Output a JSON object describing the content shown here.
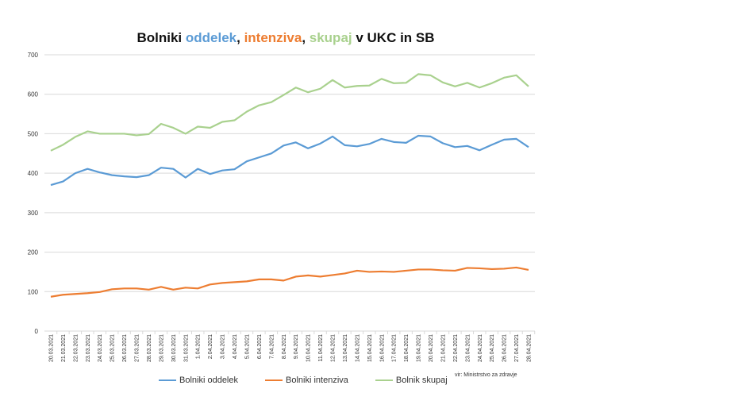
{
  "chart_data": {
    "type": "line",
    "title_parts": [
      {
        "text": "Bolniki ",
        "color": "#111111"
      },
      {
        "text": "oddelek",
        "color": "#5b9bd5"
      },
      {
        "text": ", ",
        "color": "#111111"
      },
      {
        "text": "intenziva",
        "color": "#ed7d31"
      },
      {
        "text": ", ",
        "color": "#111111"
      },
      {
        "text": "skupaj",
        "color": "#a9d18e"
      },
      {
        "text": " v UKC in SB",
        "color": "#111111"
      }
    ],
    "ylim": [
      0,
      700
    ],
    "yticks": [
      0,
      100,
      200,
      300,
      400,
      500,
      600,
      700
    ],
    "grid": true,
    "legend_position": "bottom",
    "categories": [
      "20.03.2021",
      "21.03.2021",
      "22.03.2021",
      "23.03.2021",
      "24.03.2021",
      "25.03.2021",
      "26.03.2021",
      "27.03.2021",
      "28.03.2021",
      "29.03.2021",
      "30.03.2021",
      "31.03.2021",
      "1.04.2021",
      "2.04.2021",
      "3.04.2021",
      "4.04.2021",
      "5.04.2021",
      "6.04.2021",
      "7.04.2021",
      "8.04.2021",
      "9.04.2021",
      "10.04.2021",
      "11.04.2021",
      "12.04.2021",
      "13.04.2021",
      "14.04.2021",
      "15.04.2021",
      "16.04.2021",
      "17.04.2021",
      "18.04.2021",
      "19.04.2021",
      "20.04.2021",
      "21.04.2021",
      "22.04.2021",
      "23.04.2021",
      "24.04.2021",
      "25.04.2021",
      "26.04.2021",
      "27.04.2021",
      "28.04.2021"
    ],
    "series": [
      {
        "name": "Bolniki oddelek",
        "color": "#5b9bd5",
        "values": [
          370,
          379,
          400,
          411,
          402,
          395,
          392,
          390,
          395,
          414,
          411,
          389,
          411,
          398,
          407,
          410,
          430,
          440,
          450,
          470,
          478,
          463,
          475,
          493,
          471,
          468,
          474,
          487,
          479,
          477,
          495,
          493,
          476,
          466,
          469,
          458,
          472,
          485,
          487,
          466
        ]
      },
      {
        "name": "Bolniki intenziva",
        "color": "#ed7d31",
        "values": [
          87,
          92,
          94,
          96,
          99,
          106,
          108,
          108,
          105,
          112,
          105,
          110,
          108,
          118,
          122,
          124,
          126,
          131,
          131,
          128,
          138,
          141,
          138,
          142,
          146,
          153,
          150,
          151,
          150,
          153,
          156,
          156,
          154,
          153,
          160,
          159,
          157,
          158,
          161,
          155
        ]
      },
      {
        "name": "Bolnik skupaj",
        "color": "#a9d18e",
        "values": [
          457,
          472,
          492,
          506,
          500,
          500,
          500,
          496,
          499,
          525,
          515,
          500,
          518,
          515,
          530,
          534,
          556,
          572,
          580,
          598,
          617,
          605,
          614,
          636,
          617,
          621,
          622,
          639,
          628,
          629,
          651,
          648,
          630,
          620,
          629,
          617,
          628,
          642,
          648,
          620
        ]
      }
    ],
    "source": "vir: Ministrstvo za zdravje"
  }
}
